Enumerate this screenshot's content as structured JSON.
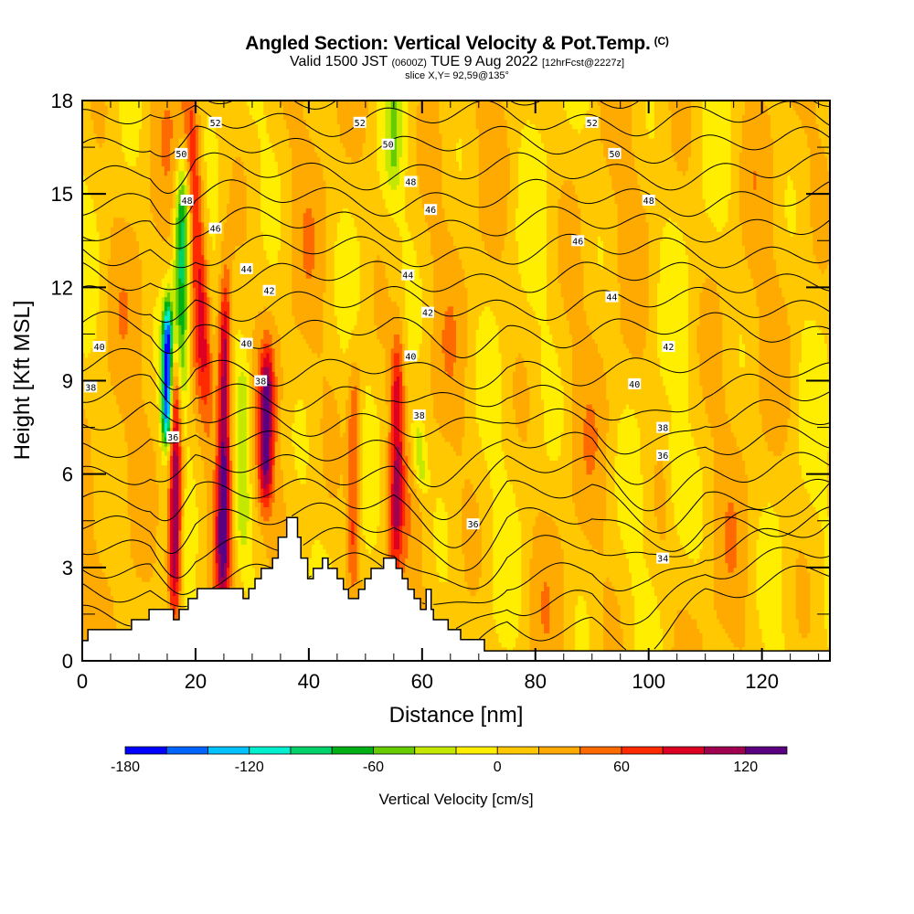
{
  "header": {
    "title": "Angled Section: Vertical Velocity & Pot.Temp.",
    "title_unit": "(C)",
    "valid_prefix": "Valid 1500 JST",
    "valid_utc": "(0600Z)",
    "valid_date": "TUE 9 Aug 2022",
    "forecast": "[12hrFcst@2227z]",
    "slice": "slice X,Y= 92,59@135°"
  },
  "chart_data": {
    "type": "heatmap",
    "title": "Angled Section: Vertical Velocity & Pot.Temp. (C)",
    "subtitle": "Valid 1500 JST (0600Z) TUE 9 Aug 2022 [12hrFcst@2227z]; slice X,Y= 92,59@135°",
    "xlabel": "Distance [nm]",
    "ylabel": "Height [Kft MSL]",
    "xlim": [
      0,
      132
    ],
    "ylim": [
      0,
      18
    ],
    "x_ticks": [
      0,
      20,
      40,
      60,
      80,
      100,
      120
    ],
    "x_minor_step": 5,
    "y_ticks": [
      0,
      3,
      6,
      9,
      12,
      15,
      18
    ],
    "y_minor_step": 1.5,
    "grid": false,
    "colorbar": {
      "title": "Vertical Velocity [cm/s]",
      "placement": "bottom",
      "bounds": [
        -180,
        -160,
        -140,
        -120,
        -100,
        -80,
        -60,
        -40,
        -20,
        0,
        20,
        40,
        60,
        80,
        100,
        120,
        140
      ],
      "colors": [
        "#0000ff",
        "#0064ff",
        "#00c3ff",
        "#00efcf",
        "#00d26a",
        "#00b015",
        "#66cc00",
        "#c5e800",
        "#ffee00",
        "#ffc800",
        "#ffaa00",
        "#ff6a00",
        "#ff2a00",
        "#dd0022",
        "#a00050",
        "#5a0080"
      ],
      "tick_labels": [
        "-180",
        "-120",
        "-60",
        "0",
        "60",
        "120"
      ],
      "tick_values": [
        -180,
        -120,
        -60,
        0,
        60,
        120
      ]
    },
    "updraft_bands": [
      {
        "x_center": 16.5,
        "z_bottom": 2.0,
        "z_top": 9.5,
        "peak": 130
      },
      {
        "x_center": 25.0,
        "z_bottom": 2.5,
        "z_top": 11.5,
        "peak": 125
      },
      {
        "x_center": 32.5,
        "z_bottom": 5.5,
        "z_top": 9.5,
        "peak": 95
      },
      {
        "x_center": 20.5,
        "z_bottom": 8.0,
        "z_top": 18.0,
        "peak": 75
      },
      {
        "x_center": 55.5,
        "z_bottom": 3.5,
        "z_top": 10.0,
        "peak": 75
      },
      {
        "x_center": 48.0,
        "z_bottom": 3.0,
        "z_top": 9.0,
        "peak": 60
      }
    ],
    "downdraft_bands": [
      {
        "x_center": 15.0,
        "z_bottom": 7.5,
        "z_top": 11.0,
        "peak": -180
      },
      {
        "x_center": 17.5,
        "z_bottom": 8.0,
        "z_top": 15.5,
        "peak": -110
      },
      {
        "x_center": 28.5,
        "z_bottom": 4.0,
        "z_top": 9.0,
        "peak": -50
      },
      {
        "x_center": 59.5,
        "z_bottom": 5.8,
        "z_top": 7.5,
        "peak": -50
      },
      {
        "x_center": 105.0,
        "z_bottom": 4.5,
        "z_top": 7.0,
        "peak": -25
      },
      {
        "x_center": 55.0,
        "z_bottom": 15.5,
        "z_top": 18.0,
        "peak": -30
      }
    ],
    "theta_contours": {
      "interval": 1,
      "levels_labeled": [
        34,
        36,
        38,
        40,
        42,
        44,
        46,
        48,
        50,
        52
      ],
      "labels": [
        {
          "value": "52",
          "x": 23.5,
          "z": 17.3
        },
        {
          "value": "52",
          "x": 49.0,
          "z": 17.3
        },
        {
          "value": "52",
          "x": 90.0,
          "z": 17.3
        },
        {
          "value": "50",
          "x": 17.5,
          "z": 16.3
        },
        {
          "value": "50",
          "x": 54.0,
          "z": 16.6
        },
        {
          "value": "50",
          "x": 94.0,
          "z": 16.3
        },
        {
          "value": "48",
          "x": 18.5,
          "z": 14.8
        },
        {
          "value": "48",
          "x": 58.0,
          "z": 15.4
        },
        {
          "value": "48",
          "x": 100.0,
          "z": 14.8
        },
        {
          "value": "46",
          "x": 23.5,
          "z": 13.9
        },
        {
          "value": "46",
          "x": 61.5,
          "z": 14.5
        },
        {
          "value": "46",
          "x": 87.5,
          "z": 13.5
        },
        {
          "value": "44",
          "x": 29.0,
          "z": 12.6
        },
        {
          "value": "44",
          "x": 57.5,
          "z": 12.4
        },
        {
          "value": "44",
          "x": 93.5,
          "z": 11.7
        },
        {
          "value": "42",
          "x": 33.0,
          "z": 11.9
        },
        {
          "value": "42",
          "x": 61.0,
          "z": 11.2
        },
        {
          "value": "42",
          "x": 103.5,
          "z": 10.1
        },
        {
          "value": "40",
          "x": 3.0,
          "z": 10.1
        },
        {
          "value": "40",
          "x": 29.0,
          "z": 10.2
        },
        {
          "value": "40",
          "x": 58.0,
          "z": 9.8
        },
        {
          "value": "40",
          "x": 97.5,
          "z": 8.9
        },
        {
          "value": "38",
          "x": 1.5,
          "z": 8.8
        },
        {
          "value": "38",
          "x": 31.5,
          "z": 9.0
        },
        {
          "value": "38",
          "x": 59.5,
          "z": 7.9
        },
        {
          "value": "38",
          "x": 102.5,
          "z": 7.5
        },
        {
          "value": "36",
          "x": 16.0,
          "z": 7.2
        },
        {
          "value": "36",
          "x": 69.0,
          "z": 4.4
        },
        {
          "value": "36",
          "x": 102.5,
          "z": 6.6
        },
        {
          "value": "34",
          "x": 102.5,
          "z": 3.3
        }
      ]
    },
    "terrain_kft": {
      "x": [
        0,
        1,
        4.2,
        8.7,
        11.8,
        16.1,
        17.1,
        18.7,
        20.3,
        22.6,
        28.4,
        29.4,
        30.5,
        31.6,
        33.6,
        34.6,
        36.1,
        37.0,
        38.0,
        38.6,
        39.8,
        40.8,
        42.4,
        43.4,
        45.0,
        46.1,
        47.0,
        48.5,
        48.8,
        49.9,
        51.0,
        53.2,
        54.4,
        55.4,
        56.5,
        57.5,
        58.6,
        59.7,
        60.7,
        61.6,
        62.0,
        64.6,
        66.8,
        71.0,
        132
      ],
      "z": [
        0.65,
        1.0,
        1.0,
        1.32,
        1.65,
        1.32,
        1.65,
        2.0,
        2.32,
        2.32,
        2.0,
        2.32,
        2.64,
        2.97,
        3.3,
        3.97,
        4.6,
        4.6,
        3.97,
        3.3,
        2.64,
        2.97,
        3.3,
        2.97,
        2.64,
        2.3,
        2.0,
        2.0,
        2.3,
        2.64,
        2.97,
        3.3,
        3.3,
        2.97,
        2.64,
        2.3,
        2.0,
        1.65,
        2.3,
        1.65,
        1.32,
        1.0,
        0.68,
        0.32,
        0.32
      ]
    }
  }
}
